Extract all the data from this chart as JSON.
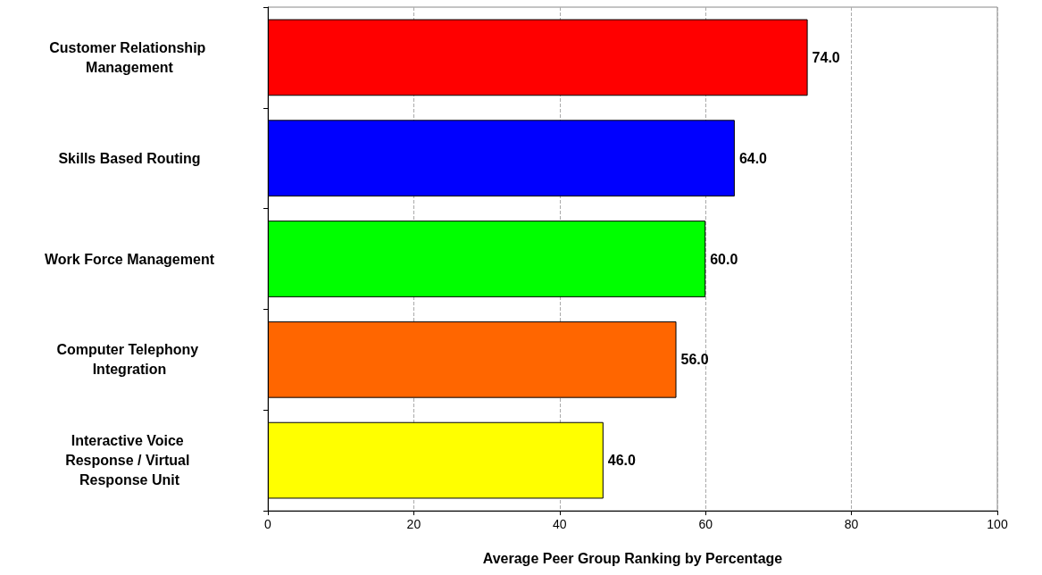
{
  "chart_data": {
    "type": "bar",
    "orientation": "horizontal",
    "categories": [
      "Customer Relationship Management",
      "Skills Based Routing",
      "Work Force Management",
      "Computer Telephony Integration",
      "Interactive Voice Response / Virtual Response Unit"
    ],
    "values": [
      74,
      64,
      60,
      56,
      46
    ],
    "colors": [
      "#ff0000",
      "#0000ff",
      "#00ff00",
      "#ff6600",
      "#ffff00"
    ],
    "value_labels": [
      "74.0",
      "64.0",
      "60.0",
      "56.0",
      "46.0"
    ],
    "xlabel": "Average Peer Group Ranking by Percentage",
    "xlim": [
      0,
      100
    ],
    "xticks": [
      0,
      20,
      40,
      60,
      80,
      100
    ],
    "grid": "x"
  }
}
